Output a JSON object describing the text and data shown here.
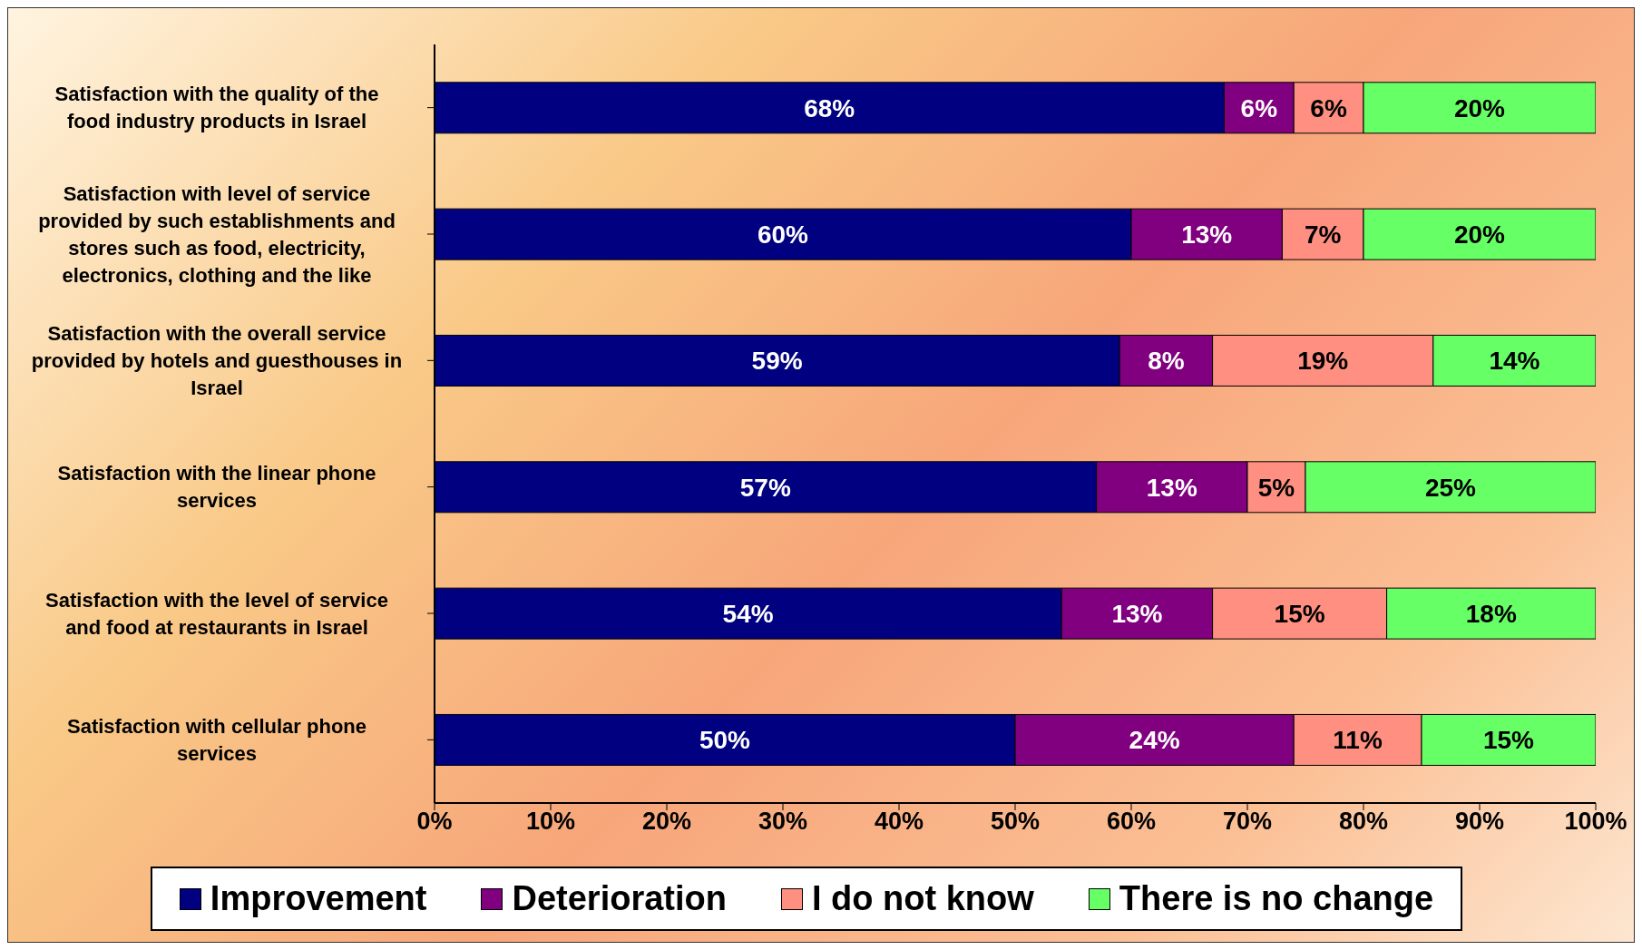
{
  "chart_data": {
    "type": "bar",
    "orientation": "horizontal",
    "stacked": true,
    "categories": [
      "Satisfaction with the quality of the food industry products in Israel",
      "Satisfaction with level of service provided by such establishments and stores such as food, electricity, electronics, clothing and the like",
      "Satisfaction with the overall service provided by hotels and guesthouses in Israel",
      "Satisfaction with the linear phone services",
      "Satisfaction with the level of service and food at restaurants in Israel",
      "Satisfaction with cellular phone services"
    ],
    "series": [
      {
        "name": "Improvement",
        "color": "#000080",
        "values": [
          68,
          60,
          59,
          57,
          54,
          50
        ],
        "value_labels": [
          "68%",
          "60%",
          "59%",
          "57%",
          "54%",
          "50%"
        ]
      },
      {
        "name": "Deterioration",
        "color": "#800080",
        "values": [
          6,
          13,
          8,
          13,
          13,
          24
        ],
        "value_labels": [
          "6%",
          "13%",
          "8%",
          "13%",
          "13%",
          "24%"
        ]
      },
      {
        "name": "I do not know",
        "color": "#ff8f80",
        "values": [
          6,
          7,
          19,
          5,
          15,
          11
        ],
        "value_labels": [
          "6%",
          "7%",
          "19%",
          "5%",
          "15%",
          "11%"
        ]
      },
      {
        "name": "There is no change",
        "color": "#66ff66",
        "values": [
          20,
          20,
          14,
          25,
          18,
          15
        ],
        "value_labels": [
          "20%",
          "20%",
          "14%",
          "25%",
          "18%",
          "15%"
        ]
      }
    ],
    "xlim": [
      0,
      100
    ],
    "xticks": [
      {
        "value": 0,
        "label": "0%"
      },
      {
        "value": 10,
        "label": "10%"
      },
      {
        "value": 20,
        "label": "20%"
      },
      {
        "value": 30,
        "label": "30%"
      },
      {
        "value": 40,
        "label": "40%"
      },
      {
        "value": 50,
        "label": "50%"
      },
      {
        "value": 60,
        "label": "60%"
      },
      {
        "value": 70,
        "label": "70%"
      },
      {
        "value": 80,
        "label": "80%"
      },
      {
        "value": 90,
        "label": "90%"
      },
      {
        "value": 100,
        "label": "100%"
      }
    ],
    "grid": false,
    "legend": "bottom"
  }
}
